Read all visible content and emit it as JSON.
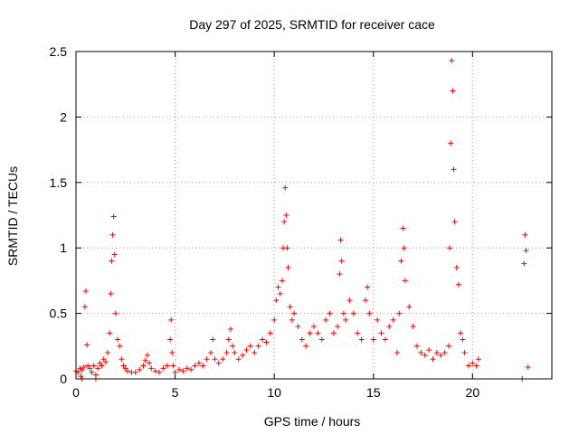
{
  "chart_data": {
    "type": "scatter",
    "title": "Day 297 of 2025, SRMTID for receiver cace",
    "xlabel": "GPS time / hours",
    "ylabel": "SRMTID / TECUs",
    "xlim": [
      0,
      24
    ],
    "ylim": [
      0,
      2.5
    ],
    "x_ticks": [
      0,
      5,
      10,
      15,
      20
    ],
    "x_tick_labels": [
      "0",
      "5",
      "10",
      "15",
      "20"
    ],
    "y_ticks": [
      0,
      0.5,
      1,
      1.5,
      2,
      2.5
    ],
    "y_tick_labels": [
      "0",
      "0.5",
      "1",
      "1.5",
      "2",
      "2.5"
    ],
    "grid": true,
    "marker": "+",
    "color": "#ff0000",
    "series": [
      {
        "name": "SRMTID",
        "points": [
          [
            0.0,
            0.06
          ],
          [
            0.1,
            0.05
          ],
          [
            0.2,
            0.08
          ],
          [
            0.25,
            0.02
          ],
          [
            0.3,
            0.07
          ],
          [
            0.4,
            0.09
          ],
          [
            0.45,
            0.55
          ],
          [
            0.5,
            0.67
          ],
          [
            0.55,
            0.26
          ],
          [
            0.6,
            0.1
          ],
          [
            0.7,
            0.08
          ],
          [
            0.8,
            0.05
          ],
          [
            0.9,
            0.1
          ],
          [
            1.0,
            0.03
          ],
          [
            1.1,
            0.08
          ],
          [
            1.2,
            0.12
          ],
          [
            1.3,
            0.1
          ],
          [
            1.4,
            0.15
          ],
          [
            1.5,
            0.13
          ],
          [
            1.6,
            0.2
          ],
          [
            1.7,
            0.35
          ],
          [
            1.75,
            0.65
          ],
          [
            1.8,
            0.9
          ],
          [
            1.85,
            1.1
          ],
          [
            1.9,
            1.24
          ],
          [
            1.95,
            0.95
          ],
          [
            2.0,
            0.5
          ],
          [
            2.1,
            0.3
          ],
          [
            2.2,
            0.25
          ],
          [
            2.3,
            0.15
          ],
          [
            2.4,
            0.1
          ],
          [
            2.5,
            0.08
          ],
          [
            2.6,
            0.06
          ],
          [
            2.8,
            0.05
          ],
          [
            3.0,
            0.05
          ],
          [
            3.2,
            0.07
          ],
          [
            3.4,
            0.1
          ],
          [
            3.5,
            0.14
          ],
          [
            3.6,
            0.18
          ],
          [
            3.7,
            0.12
          ],
          [
            3.8,
            0.08
          ],
          [
            4.0,
            0.06
          ],
          [
            4.2,
            0.05
          ],
          [
            4.4,
            0.08
          ],
          [
            4.6,
            0.1
          ],
          [
            4.75,
            0.3
          ],
          [
            4.8,
            0.45
          ],
          [
            4.85,
            0.2
          ],
          [
            4.9,
            0.1
          ],
          [
            5.0,
            0.05
          ],
          [
            5.2,
            0.07
          ],
          [
            5.4,
            0.06
          ],
          [
            5.6,
            0.08
          ],
          [
            5.8,
            0.07
          ],
          [
            6.0,
            0.1
          ],
          [
            6.2,
            0.12
          ],
          [
            6.4,
            0.1
          ],
          [
            6.6,
            0.15
          ],
          [
            6.8,
            0.2
          ],
          [
            6.9,
            0.3
          ],
          [
            7.0,
            0.15
          ],
          [
            7.2,
            0.12
          ],
          [
            7.4,
            0.15
          ],
          [
            7.6,
            0.2
          ],
          [
            7.7,
            0.3
          ],
          [
            7.8,
            0.38
          ],
          [
            7.9,
            0.25
          ],
          [
            8.0,
            0.2
          ],
          [
            8.2,
            0.15
          ],
          [
            8.4,
            0.18
          ],
          [
            8.6,
            0.22
          ],
          [
            8.8,
            0.25
          ],
          [
            9.0,
            0.2
          ],
          [
            9.2,
            0.25
          ],
          [
            9.4,
            0.3
          ],
          [
            9.6,
            0.28
          ],
          [
            9.8,
            0.35
          ],
          [
            10.0,
            0.45
          ],
          [
            10.1,
            0.6
          ],
          [
            10.2,
            0.7
          ],
          [
            10.3,
            0.65
          ],
          [
            10.4,
            0.75
          ],
          [
            10.45,
            1.0
          ],
          [
            10.5,
            1.2
          ],
          [
            10.55,
            1.46
          ],
          [
            10.6,
            1.25
          ],
          [
            10.65,
            1.0
          ],
          [
            10.7,
            0.85
          ],
          [
            10.8,
            0.55
          ],
          [
            10.9,
            0.45
          ],
          [
            11.0,
            0.5
          ],
          [
            11.2,
            0.4
          ],
          [
            11.4,
            0.3
          ],
          [
            11.6,
            0.25
          ],
          [
            11.8,
            0.35
          ],
          [
            12.0,
            0.4
          ],
          [
            12.2,
            0.35
          ],
          [
            12.4,
            0.3
          ],
          [
            12.6,
            0.45
          ],
          [
            12.8,
            0.5
          ],
          [
            13.0,
            0.35
          ],
          [
            13.2,
            0.4
          ],
          [
            13.3,
            0.8
          ],
          [
            13.35,
            1.06
          ],
          [
            13.4,
            0.9
          ],
          [
            13.5,
            0.5
          ],
          [
            13.6,
            0.45
          ],
          [
            13.8,
            0.6
          ],
          [
            14.0,
            0.5
          ],
          [
            14.2,
            0.35
          ],
          [
            14.4,
            0.3
          ],
          [
            14.6,
            0.6
          ],
          [
            14.7,
            0.7
          ],
          [
            14.8,
            0.5
          ],
          [
            15.0,
            0.3
          ],
          [
            15.2,
            0.45
          ],
          [
            15.4,
            0.35
          ],
          [
            15.6,
            0.3
          ],
          [
            15.8,
            0.4
          ],
          [
            16.0,
            0.45
          ],
          [
            16.2,
            0.2
          ],
          [
            16.3,
            0.5
          ],
          [
            16.4,
            0.9
          ],
          [
            16.5,
            1.15
          ],
          [
            16.55,
            1.0
          ],
          [
            16.6,
            0.75
          ],
          [
            16.8,
            0.55
          ],
          [
            17.0,
            0.4
          ],
          [
            17.2,
            0.25
          ],
          [
            17.4,
            0.2
          ],
          [
            17.6,
            0.18
          ],
          [
            17.8,
            0.22
          ],
          [
            18.0,
            0.15
          ],
          [
            18.2,
            0.2
          ],
          [
            18.4,
            0.18
          ],
          [
            18.6,
            0.2
          ],
          [
            18.8,
            0.25
          ],
          [
            18.85,
            1.0
          ],
          [
            18.9,
            1.8
          ],
          [
            18.95,
            2.43
          ],
          [
            19.0,
            2.2
          ],
          [
            19.05,
            1.6
          ],
          [
            19.1,
            1.2
          ],
          [
            19.2,
            0.85
          ],
          [
            19.3,
            0.72
          ],
          [
            19.4,
            0.35
          ],
          [
            19.5,
            0.3
          ],
          [
            19.6,
            0.2
          ],
          [
            19.8,
            0.1
          ],
          [
            20.0,
            0.12
          ],
          [
            20.2,
            0.1
          ],
          [
            20.3,
            0.15
          ],
          [
            22.6,
            0.88
          ],
          [
            22.65,
            1.1
          ],
          [
            22.7,
            0.98
          ],
          [
            22.8,
            0.09
          ],
          [
            22.5,
            0.0
          ],
          [
            0.3,
            0.0
          ],
          [
            1.0,
            0.0
          ]
        ]
      }
    ]
  }
}
